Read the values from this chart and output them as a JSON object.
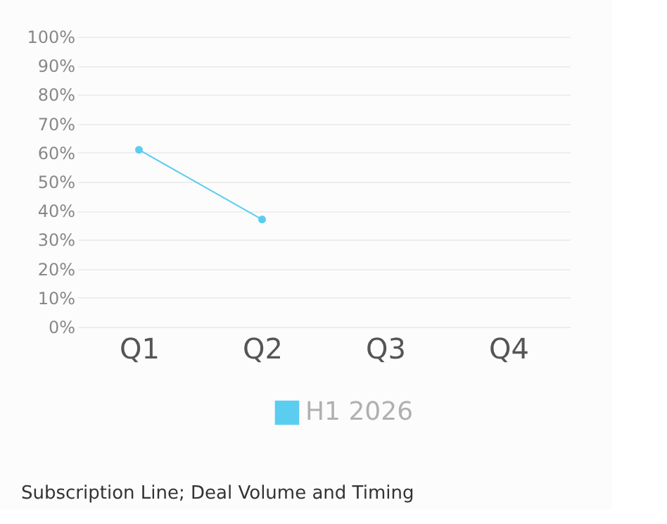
{
  "chart_data": {
    "type": "line",
    "categories": [
      "Q1",
      "Q2",
      "Q3",
      "Q4"
    ],
    "series": [
      {
        "name": "H1 2026",
        "color": "#5bcdf0",
        "values": [
          61,
          37,
          null,
          null
        ]
      }
    ],
    "ylim": [
      0,
      100
    ],
    "yticks": [
      {
        "value": 0,
        "label": "0%"
      },
      {
        "value": 10,
        "label": "10%"
      },
      {
        "value": 20,
        "label": "20%"
      },
      {
        "value": 30,
        "label": "30%"
      },
      {
        "value": 40,
        "label": "40%"
      },
      {
        "value": 50,
        "label": "50%"
      },
      {
        "value": 60,
        "label": "60%"
      },
      {
        "value": 70,
        "label": "70%"
      },
      {
        "value": 80,
        "label": "80%"
      },
      {
        "value": 90,
        "label": "90%"
      },
      {
        "value": 100,
        "label": "100%"
      }
    ],
    "grid": "y",
    "legend": "bottom",
    "marker": "circle",
    "line_style": "solid",
    "annotations": [
      "Subscription Line; Deal Volume and Timing"
    ]
  }
}
